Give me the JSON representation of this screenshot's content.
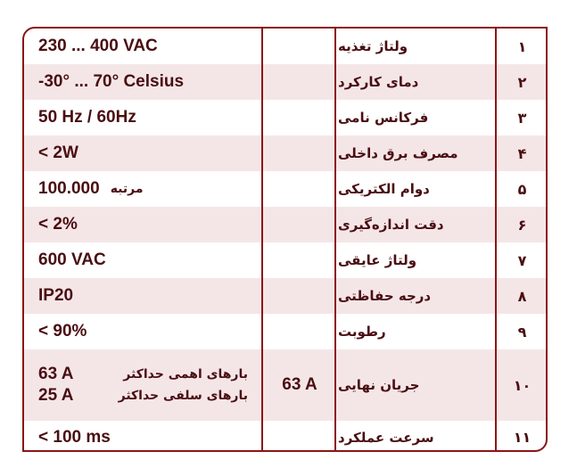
{
  "rows": [
    {
      "num": "۱",
      "label": "ولتاژ تغذیه",
      "value": "230 ... 400 VAC"
    },
    {
      "num": "۲",
      "label": "دمای کارکرد",
      "value": "-30° ... 70° Celsius"
    },
    {
      "num": "۳",
      "label": "فرکانس نامی",
      "value": "50 Hz / 60Hz"
    },
    {
      "num": "۴",
      "label": "مصرف برق داخلی",
      "value": "< 2W"
    },
    {
      "num": "۵",
      "label": "دوام الکتریکی",
      "value": "100.000",
      "unit": "مرتبه"
    },
    {
      "num": "۶",
      "label": "دقت اندازه‌گیری",
      "value": "< 2%"
    },
    {
      "num": "۷",
      "label": "ولتاژ عایقی",
      "value": "600 VAC"
    },
    {
      "num": "۸",
      "label": "درجه حفاظتی",
      "value": "IP20"
    },
    {
      "num": "۹",
      "label": "رطوبت",
      "value": "< 90%"
    },
    {
      "num": "۱۰",
      "label": "جریان نهایی",
      "mid": "63 A",
      "sub": [
        {
          "value": "63 A",
          "label": "بارهای اهمی حداکثر"
        },
        {
          "value": "25 A",
          "label": "بارهای سلفی حداکثر"
        }
      ]
    },
    {
      "num": "۱۱",
      "label": "سرعت عملکرد",
      "value": "< 100 ms"
    }
  ],
  "colors": {
    "border": "#8b1515",
    "text": "#4a0e12",
    "alt_row": "#f4e6e7"
  }
}
